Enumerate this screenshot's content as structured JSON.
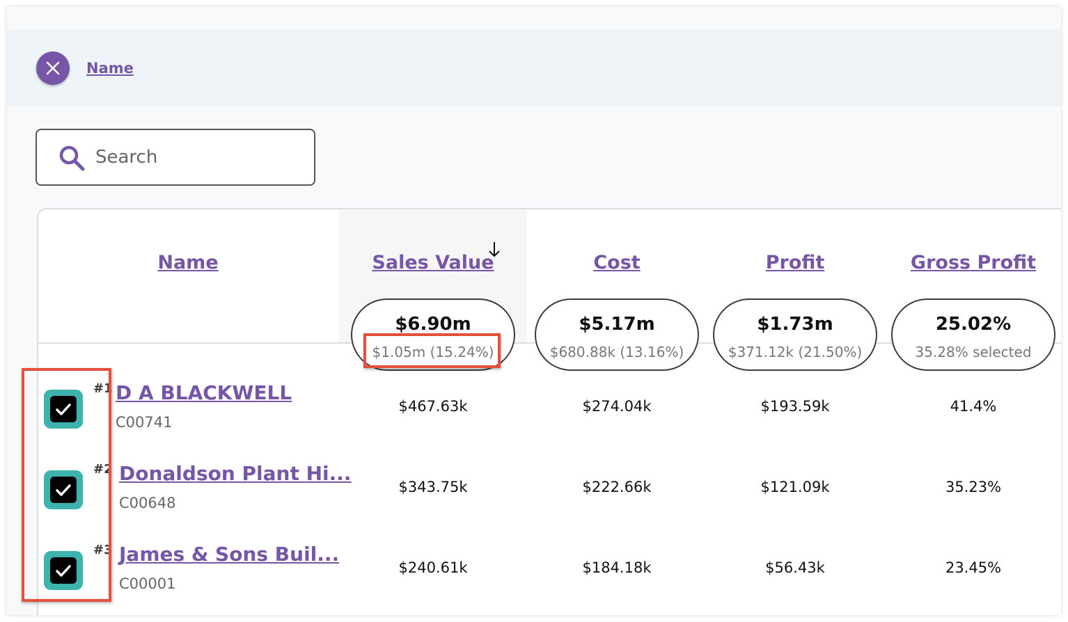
{
  "filter": {
    "label": "Name"
  },
  "search": {
    "placeholder": "Search"
  },
  "table": {
    "columns": [
      "Name",
      "Sales Value",
      "Cost",
      "Profit",
      "Gross Profit"
    ],
    "summary": [
      {
        "total": "$6.90m",
        "detail": "$1.05m (15.24%)"
      },
      {
        "total": "$5.17m",
        "detail": "$680.88k (13.16%)"
      },
      {
        "total": "$1.73m",
        "detail": "$371.12k (21.50%)"
      },
      {
        "total": "25.02%",
        "detail": "35.28% selected"
      }
    ],
    "rows": [
      {
        "rank": "#1",
        "name": "D A BLACKWELL",
        "code": "C00741",
        "cells": [
          "$467.63k",
          "$274.04k",
          "$193.59k",
          "41.4%"
        ]
      },
      {
        "rank": "#2",
        "name": "Donaldson Plant Hi...",
        "code": "C00648",
        "cells": [
          "$343.75k",
          "$222.66k",
          "$121.09k",
          "35.23%"
        ]
      },
      {
        "rank": "#3",
        "name": "James & Sons Buil...",
        "code": "C00001",
        "cells": [
          "$240.61k",
          "$184.18k",
          "$56.43k",
          "23.45%"
        ]
      }
    ]
  }
}
